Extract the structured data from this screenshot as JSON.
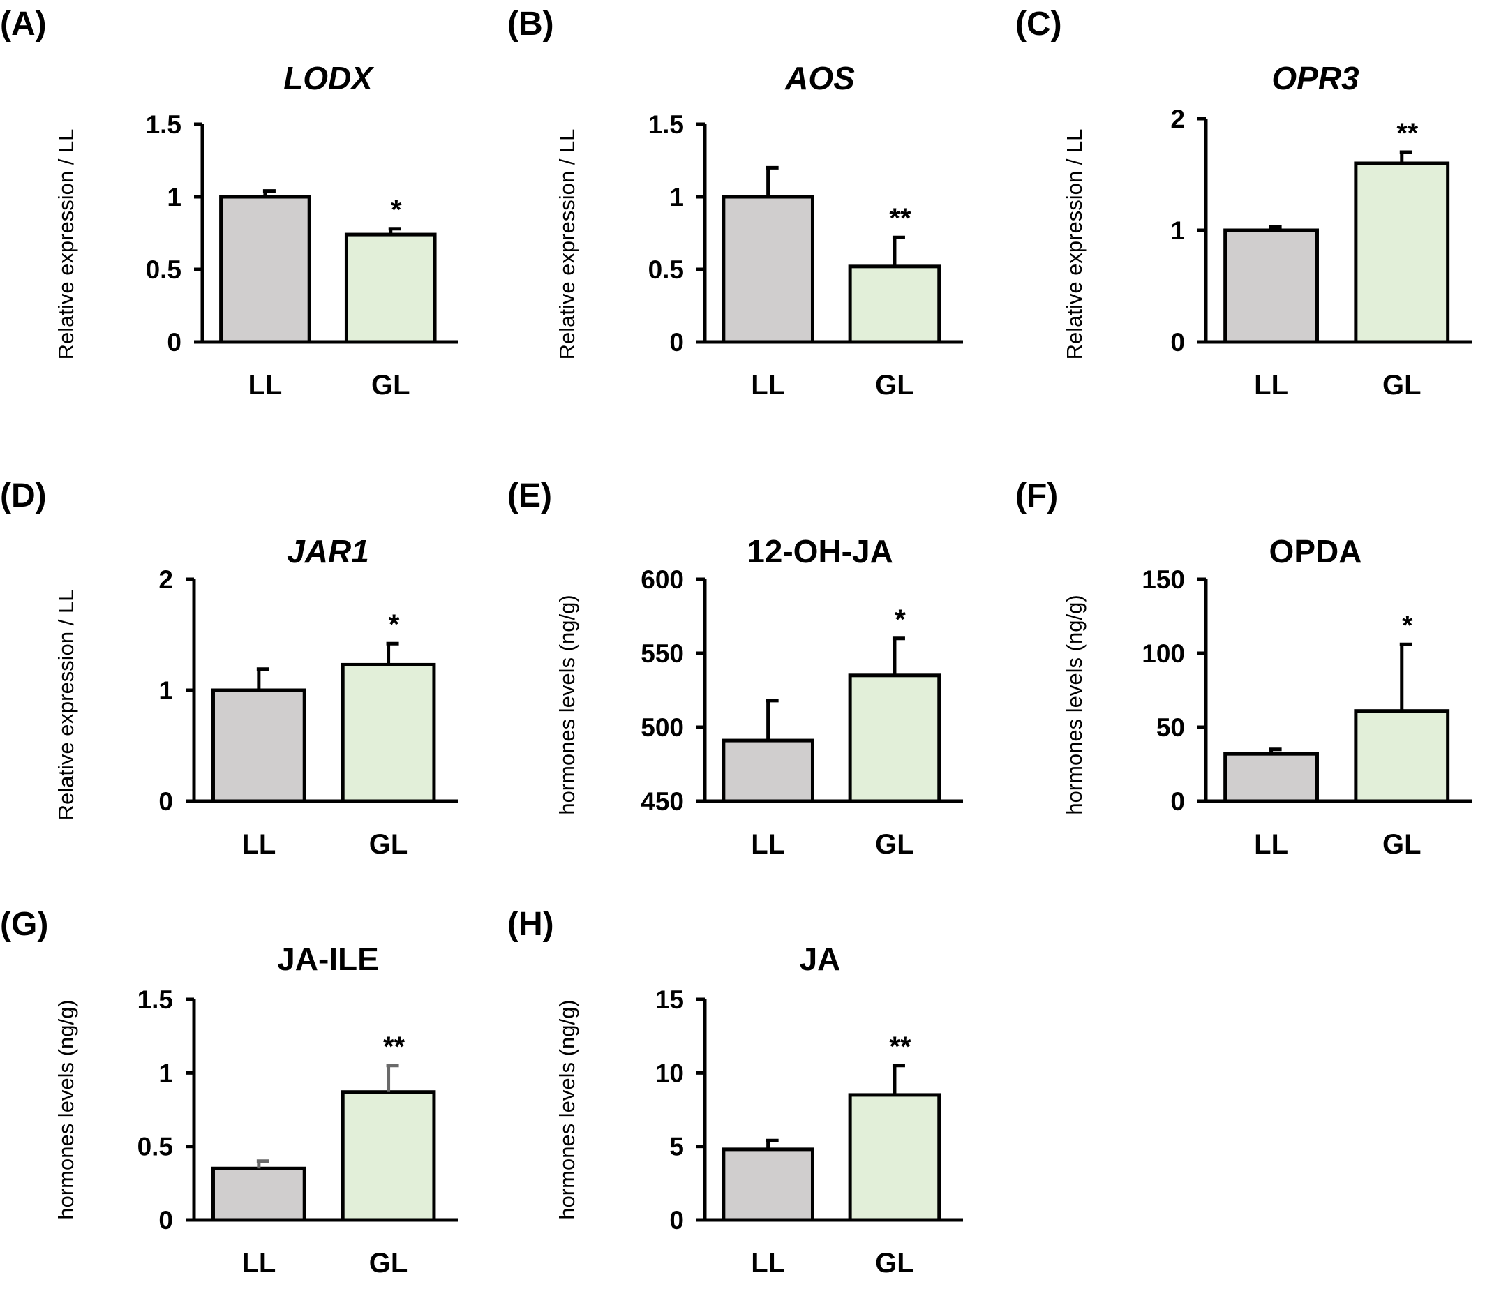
{
  "colors": {
    "LL": "#d0cece",
    "GL": "#e2efd9",
    "axis": "#000000"
  },
  "chart_data": [
    {
      "panel": "(A)",
      "type": "bar",
      "title": "LODX",
      "title_italic": true,
      "ylabel": "Relative expression / LL",
      "ylim": [
        0,
        1.5
      ],
      "yticks": [
        0,
        0.5,
        1,
        1.5
      ],
      "ytick_labels": [
        "0",
        "0.5",
        "1",
        "1.5"
      ],
      "categories": [
        "LL",
        "GL"
      ],
      "values": [
        1.0,
        0.74
      ],
      "errors": [
        0.04,
        0.04
      ],
      "significance": [
        "",
        "*"
      ]
    },
    {
      "panel": "(B)",
      "type": "bar",
      "title": "AOS",
      "title_italic": true,
      "ylabel": "Relative expression / LL",
      "ylim": [
        0,
        1.5
      ],
      "yticks": [
        0,
        0.5,
        1,
        1.5
      ],
      "ytick_labels": [
        "0",
        "0.5",
        "1",
        "1.5"
      ],
      "categories": [
        "LL",
        "GL"
      ],
      "values": [
        1.0,
        0.52
      ],
      "errors": [
        0.2,
        0.2
      ],
      "significance": [
        "",
        "**"
      ]
    },
    {
      "panel": "(C)",
      "type": "bar",
      "title": "OPR3",
      "title_italic": true,
      "ylabel": "Relative expression / LL",
      "ylim": [
        0,
        2
      ],
      "yticks": [
        0,
        1,
        2
      ],
      "ytick_labels": [
        "0",
        "1",
        "2"
      ],
      "categories": [
        "LL",
        "GL"
      ],
      "values": [
        1.0,
        1.6
      ],
      "errors": [
        0.03,
        0.1
      ],
      "significance": [
        "",
        "**"
      ]
    },
    {
      "panel": "(D)",
      "type": "bar",
      "title": "JAR1",
      "title_italic": true,
      "ylabel": "Relative expression / LL",
      "ylim": [
        0,
        2
      ],
      "yticks": [
        0,
        1,
        2
      ],
      "ytick_labels": [
        "0",
        "1",
        "2"
      ],
      "categories": [
        "LL",
        "GL"
      ],
      "values": [
        1.0,
        1.23
      ],
      "errors": [
        0.19,
        0.19
      ],
      "significance": [
        "",
        "*"
      ]
    },
    {
      "panel": "(E)",
      "type": "bar",
      "title": "12-OH-JA",
      "title_italic": false,
      "ylabel": "hormones levels (ng/g)",
      "ylim": [
        450,
        600
      ],
      "yticks": [
        450,
        500,
        550,
        600
      ],
      "ytick_labels": [
        "450",
        "500",
        "550",
        "600"
      ],
      "categories": [
        "LL",
        "GL"
      ],
      "values": [
        491,
        535
      ],
      "errors": [
        27,
        25
      ],
      "significance": [
        "",
        "*"
      ]
    },
    {
      "panel": "(F)",
      "type": "bar",
      "title": "OPDA",
      "title_italic": false,
      "ylabel": "hormones levels (ng/g)",
      "ylim": [
        0,
        150
      ],
      "yticks": [
        0,
        50,
        100,
        150
      ],
      "ytick_labels": [
        "0",
        "50",
        "100",
        "150"
      ],
      "categories": [
        "LL",
        "GL"
      ],
      "values": [
        32,
        61
      ],
      "errors": [
        3,
        45
      ],
      "significance": [
        "",
        "*"
      ]
    },
    {
      "panel": "(G)",
      "type": "bar",
      "title": "JA-ILE",
      "title_italic": false,
      "ylabel": "hormones levels (ng/g)",
      "ylim": [
        0,
        1.5
      ],
      "yticks": [
        0,
        0.5,
        1,
        1.5
      ],
      "ytick_labels": [
        "0",
        "0.5",
        "1",
        "1.5"
      ],
      "categories": [
        "LL",
        "GL"
      ],
      "values": [
        0.35,
        0.87
      ],
      "errors": [
        0.05,
        0.18
      ],
      "error_color": "grey",
      "significance": [
        "",
        "**"
      ]
    },
    {
      "panel": "(H)",
      "type": "bar",
      "title": "JA",
      "title_italic": false,
      "ylabel": "hormones levels (ng/g)",
      "ylim": [
        0,
        15
      ],
      "yticks": [
        0,
        5,
        10,
        15
      ],
      "ytick_labels": [
        "0",
        "5",
        "10",
        "15"
      ],
      "categories": [
        "LL",
        "GL"
      ],
      "values": [
        4.8,
        8.5
      ],
      "errors": [
        0.6,
        2.0
      ],
      "significance": [
        "",
        "**"
      ]
    }
  ]
}
